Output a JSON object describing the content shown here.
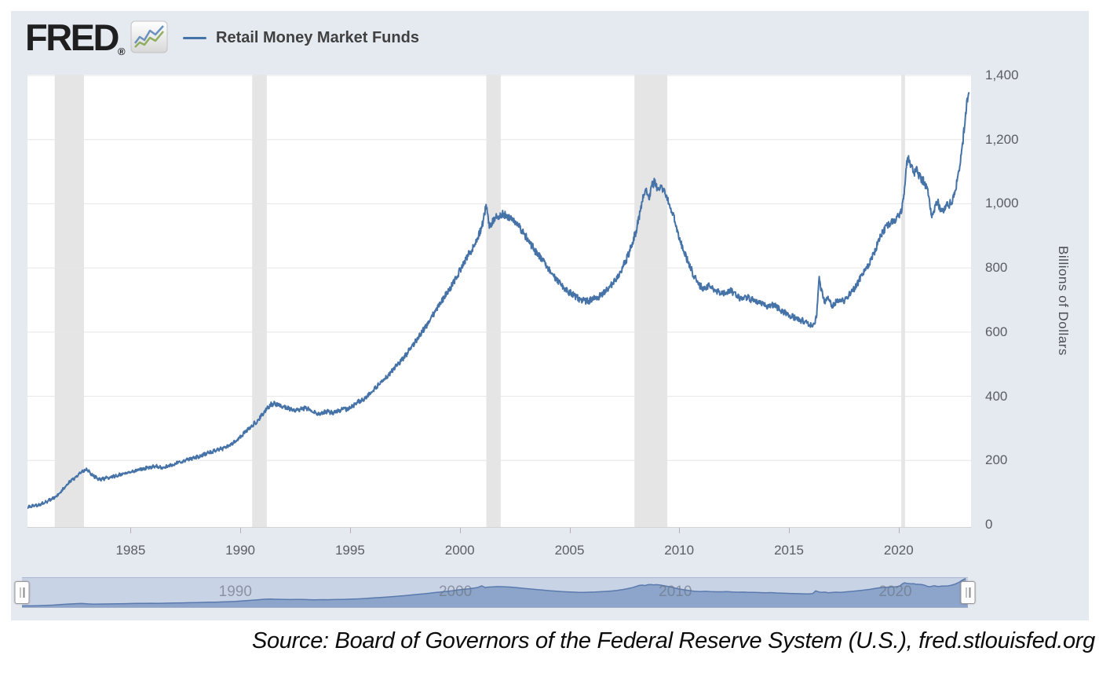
{
  "header": {
    "logo_text": "FRED",
    "logo_reg": "®",
    "legend": {
      "series_label": "Retail Money Market Funds"
    }
  },
  "axes": {
    "y_title": "Billions of Dollars"
  },
  "footer": {
    "source": "Source: Board of Governors of the Federal Reserve System (U.S.), fred.stlouisfed.org"
  },
  "colors": {
    "line": "#4572a7",
    "grid": "#e6e6e6",
    "recession": "#e5e5e5",
    "mini_fill": "#8da5ca",
    "mini_stroke": "#5a7aae",
    "icon_blue": "#6b92bd",
    "icon_green": "#8fae5f"
  },
  "chart_data": {
    "type": "line",
    "title": "Retail Money Market Funds",
    "ylabel": "Billions of Dollars",
    "xlabel": "",
    "legend_position": "top-left",
    "grid": "horizontal",
    "x_domain": [
      1980.3,
      2023.3
    ],
    "ylim": [
      0,
      1400
    ],
    "y_ticks": [
      0,
      200,
      400,
      600,
      800,
      1000,
      1200,
      1400
    ],
    "x_ticks": [
      1985,
      1990,
      1995,
      2000,
      2005,
      2010,
      2015,
      2020
    ],
    "recessions": [
      [
        1981.54,
        1982.87
      ],
      [
        1990.54,
        1991.21
      ],
      [
        2001.21,
        2001.87
      ],
      [
        2007.96,
        2009.46
      ],
      [
        2020.12,
        2020.29
      ]
    ],
    "series": [
      {
        "name": "Retail Money Market Funds",
        "units": "Billions of Dollars",
        "points": [
          [
            1980.3,
            55
          ],
          [
            1980.55,
            58
          ],
          [
            1980.8,
            61
          ],
          [
            1981.0,
            66
          ],
          [
            1981.25,
            74
          ],
          [
            1981.5,
            84
          ],
          [
            1981.75,
            97
          ],
          [
            1982.0,
            116
          ],
          [
            1982.25,
            134
          ],
          [
            1982.5,
            149
          ],
          [
            1982.75,
            162
          ],
          [
            1982.95,
            172
          ],
          [
            1983.1,
            166
          ],
          [
            1983.3,
            152
          ],
          [
            1983.55,
            141
          ],
          [
            1983.8,
            143
          ],
          [
            1984.1,
            148
          ],
          [
            1984.4,
            153
          ],
          [
            1984.7,
            159
          ],
          [
            1985.0,
            164
          ],
          [
            1985.3,
            170
          ],
          [
            1985.6,
            175
          ],
          [
            1985.9,
            179
          ],
          [
            1986.15,
            181
          ],
          [
            1986.4,
            177
          ],
          [
            1986.7,
            182
          ],
          [
            1987.0,
            189
          ],
          [
            1987.3,
            196
          ],
          [
            1987.6,
            202
          ],
          [
            1987.9,
            208
          ],
          [
            1988.2,
            215
          ],
          [
            1988.5,
            223
          ],
          [
            1988.8,
            229
          ],
          [
            1989.1,
            235
          ],
          [
            1989.4,
            243
          ],
          [
            1989.7,
            256
          ],
          [
            1990.0,
            272
          ],
          [
            1990.25,
            290
          ],
          [
            1990.5,
            306
          ],
          [
            1990.75,
            322
          ],
          [
            1991.0,
            342
          ],
          [
            1991.2,
            362
          ],
          [
            1991.4,
            374
          ],
          [
            1991.6,
            377
          ],
          [
            1991.8,
            371
          ],
          [
            1992.0,
            367
          ],
          [
            1992.25,
            361
          ],
          [
            1992.5,
            356
          ],
          [
            1992.75,
            360
          ],
          [
            1993.0,
            363
          ],
          [
            1993.2,
            356
          ],
          [
            1993.4,
            349
          ],
          [
            1993.6,
            345
          ],
          [
            1993.8,
            349
          ],
          [
            1994.0,
            352
          ],
          [
            1994.2,
            349
          ],
          [
            1994.45,
            355
          ],
          [
            1994.7,
            362
          ],
          [
            1994.9,
            359
          ],
          [
            1995.1,
            370
          ],
          [
            1995.35,
            381
          ],
          [
            1995.6,
            391
          ],
          [
            1995.85,
            404
          ],
          [
            1996.1,
            421
          ],
          [
            1996.35,
            442
          ],
          [
            1996.6,
            458
          ],
          [
            1996.85,
            472
          ],
          [
            1997.1,
            492
          ],
          [
            1997.35,
            512
          ],
          [
            1997.6,
            534
          ],
          [
            1997.85,
            557
          ],
          [
            1998.1,
            582
          ],
          [
            1998.35,
            608
          ],
          [
            1998.6,
            632
          ],
          [
            1998.85,
            662
          ],
          [
            1999.1,
            688
          ],
          [
            1999.35,
            714
          ],
          [
            1999.6,
            742
          ],
          [
            1999.85,
            772
          ],
          [
            2000.1,
            804
          ],
          [
            2000.35,
            838
          ],
          [
            2000.6,
            862
          ],
          [
            2000.85,
            898
          ],
          [
            2001.05,
            938
          ],
          [
            2001.2,
            1000
          ],
          [
            2001.35,
            928
          ],
          [
            2001.5,
            946
          ],
          [
            2001.7,
            958
          ],
          [
            2001.9,
            969
          ],
          [
            2002.1,
            966
          ],
          [
            2002.3,
            956
          ],
          [
            2002.5,
            946
          ],
          [
            2002.7,
            928
          ],
          [
            2002.9,
            908
          ],
          [
            2003.1,
            888
          ],
          [
            2003.35,
            862
          ],
          [
            2003.6,
            838
          ],
          [
            2003.85,
            815
          ],
          [
            2004.1,
            792
          ],
          [
            2004.35,
            768
          ],
          [
            2004.6,
            748
          ],
          [
            2004.85,
            732
          ],
          [
            2005.1,
            718
          ],
          [
            2005.35,
            708
          ],
          [
            2005.6,
            698
          ],
          [
            2005.85,
            696
          ],
          [
            2006.1,
            703
          ],
          [
            2006.35,
            712
          ],
          [
            2006.6,
            726
          ],
          [
            2006.85,
            742
          ],
          [
            2007.1,
            762
          ],
          [
            2007.35,
            790
          ],
          [
            2007.6,
            826
          ],
          [
            2007.85,
            874
          ],
          [
            2008.05,
            918
          ],
          [
            2008.2,
            968
          ],
          [
            2008.35,
            1022
          ],
          [
            2008.5,
            1040
          ],
          [
            2008.62,
            1018
          ],
          [
            2008.75,
            1058
          ],
          [
            2008.9,
            1068
          ],
          [
            2009.0,
            1048
          ],
          [
            2009.15,
            1060
          ],
          [
            2009.3,
            1042
          ],
          [
            2009.45,
            1018
          ],
          [
            2009.6,
            988
          ],
          [
            2009.75,
            958
          ],
          [
            2009.9,
            918
          ],
          [
            2010.1,
            872
          ],
          [
            2010.35,
            828
          ],
          [
            2010.6,
            786
          ],
          [
            2010.85,
            752
          ],
          [
            2011.1,
            734
          ],
          [
            2011.35,
            744
          ],
          [
            2011.6,
            729
          ],
          [
            2011.85,
            722
          ],
          [
            2012.1,
            724
          ],
          [
            2012.35,
            729
          ],
          [
            2012.6,
            713
          ],
          [
            2012.85,
            704
          ],
          [
            2013.1,
            709
          ],
          [
            2013.35,
            699
          ],
          [
            2013.6,
            693
          ],
          [
            2013.85,
            687
          ],
          [
            2014.1,
            679
          ],
          [
            2014.35,
            685
          ],
          [
            2014.6,
            669
          ],
          [
            2014.85,
            659
          ],
          [
            2015.1,
            649
          ],
          [
            2015.35,
            643
          ],
          [
            2015.6,
            635
          ],
          [
            2015.85,
            627
          ],
          [
            2016.05,
            621
          ],
          [
            2016.25,
            642
          ],
          [
            2016.38,
            764
          ],
          [
            2016.5,
            724
          ],
          [
            2016.65,
            692
          ],
          [
            2016.8,
            707
          ],
          [
            2016.95,
            679
          ],
          [
            2017.1,
            691
          ],
          [
            2017.3,
            703
          ],
          [
            2017.5,
            695
          ],
          [
            2017.7,
            713
          ],
          [
            2017.9,
            729
          ],
          [
            2018.1,
            749
          ],
          [
            2018.35,
            779
          ],
          [
            2018.6,
            806
          ],
          [
            2018.85,
            839
          ],
          [
            2019.05,
            876
          ],
          [
            2019.25,
            909
          ],
          [
            2019.45,
            929
          ],
          [
            2019.65,
            941
          ],
          [
            2019.85,
            953
          ],
          [
            2020.0,
            962
          ],
          [
            2020.12,
            975
          ],
          [
            2020.22,
            1010
          ],
          [
            2020.32,
            1096
          ],
          [
            2020.42,
            1150
          ],
          [
            2020.52,
            1122
          ],
          [
            2020.62,
            1112
          ],
          [
            2020.72,
            1096
          ],
          [
            2020.82,
            1108
          ],
          [
            2020.92,
            1088
          ],
          [
            2021.05,
            1074
          ],
          [
            2021.2,
            1066
          ],
          [
            2021.35,
            1028
          ],
          [
            2021.48,
            972
          ],
          [
            2021.58,
            966
          ],
          [
            2021.68,
            992
          ],
          [
            2021.78,
            1010
          ],
          [
            2021.88,
            984
          ],
          [
            2021.98,
            972
          ],
          [
            2022.1,
            989
          ],
          [
            2022.25,
            996
          ],
          [
            2022.4,
            1002
          ],
          [
            2022.55,
            1034
          ],
          [
            2022.7,
            1078
          ],
          [
            2022.82,
            1132
          ],
          [
            2022.92,
            1188
          ],
          [
            2023.02,
            1256
          ],
          [
            2023.12,
            1315
          ],
          [
            2023.2,
            1346
          ]
        ]
      }
    ],
    "navigator": {
      "labels": [
        1990,
        2000,
        2010,
        2020
      ],
      "ymax": 1350
    }
  }
}
